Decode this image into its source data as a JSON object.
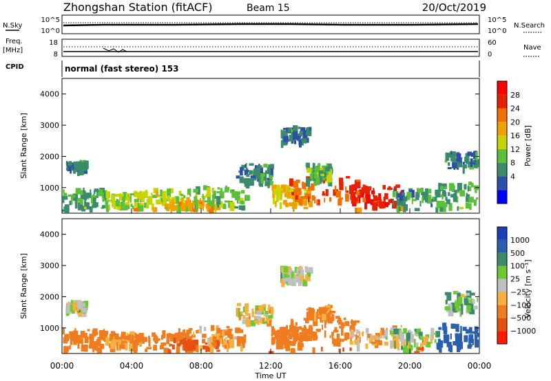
{
  "header": {
    "station": "Zhongshan Station (fitACF)",
    "beam": "Beam 15",
    "date": "20/Oct/2019"
  },
  "top_panel": {
    "left_label": "N.Sky",
    "left_ticks": [
      "10^5",
      "10^0"
    ],
    "right_ticks": [
      "10^5",
      "10^0"
    ],
    "right_label": "N.Search"
  },
  "freq_panel": {
    "left_label": "Freq.",
    "left_unit": "[MHz]",
    "left_ticks": [
      "18",
      "8"
    ],
    "right_ticks": [
      "60",
      "0"
    ],
    "right_label": "Nave"
  },
  "cpid": {
    "label": "CPID",
    "text": "normal (fast stereo) 153"
  },
  "axes": {
    "ylabel": "Slant Range [km]",
    "yticks": [
      "4000",
      "3000",
      "2000",
      "1000"
    ],
    "xticks": [
      "00:00",
      "04:00",
      "08:00",
      "12:00",
      "16:00",
      "20:00",
      "00:00"
    ],
    "xlabel": "Time UT"
  },
  "power_scale": {
    "title": "Power [dB]",
    "ticks": [
      "28",
      "24",
      "20",
      "16",
      "12",
      "8",
      "4"
    ],
    "colors": [
      "#0000ff",
      "#2c4fa8",
      "#3b8a6c",
      "#5bbf3c",
      "#c8d400",
      "#f0a000",
      "#f07000",
      "#e62000",
      "#ff0000"
    ]
  },
  "velocity_scale": {
    "title": "Velocity [m s⁻¹]",
    "ticks": [
      "1000",
      "500",
      "100",
      "25",
      "−25",
      "−100",
      "−500",
      "−1000"
    ],
    "colors": [
      "#1a3fb8",
      "#2a5fae",
      "#3b8a6c",
      "#6ec832",
      "#c0c0c0",
      "#f5b041",
      "#ef7d20",
      "#e65010",
      "#ff1a00"
    ]
  },
  "chart_data": {
    "type": "heatmap",
    "x_range": [
      "00:00",
      "24:00"
    ],
    "y_range_km": [
      180,
      4500
    ],
    "panels": [
      "power",
      "velocity"
    ],
    "regions": [
      {
        "t0": 0.0,
        "t1": 2.5,
        "r0": 300,
        "r1": 1000,
        "power": 10,
        "velocity": -200
      },
      {
        "t0": 0.2,
        "t1": 1.3,
        "r0": 1600,
        "r1": 1900,
        "power": 8,
        "velocity": 20
      },
      {
        "t0": 2.5,
        "t1": 4.5,
        "r0": 400,
        "r1": 900,
        "power": 14,
        "velocity": -150
      },
      {
        "t0": 4.5,
        "t1": 7.5,
        "r0": 300,
        "r1": 1000,
        "power": 15,
        "velocity": -300
      },
      {
        "t0": 6.0,
        "t1": 9.0,
        "r0": 200,
        "r1": 700,
        "power": 20,
        "velocity": -600
      },
      {
        "t0": 7.5,
        "t1": 10.5,
        "r0": 400,
        "r1": 1100,
        "power": 12,
        "velocity": -120
      },
      {
        "t0": 10.0,
        "t1": 12.0,
        "r0": 1200,
        "r1": 1800,
        "power": 9,
        "velocity": -50
      },
      {
        "t0": 12.0,
        "t1": 14.2,
        "r0": 500,
        "r1": 1100,
        "power": 18,
        "velocity": -200
      },
      {
        "t0": 12.5,
        "t1": 14.2,
        "r0": 2500,
        "r1": 3000,
        "power": 8,
        "velocity": 10
      },
      {
        "t0": 13.0,
        "t1": 17.0,
        "r0": 600,
        "r1": 1400,
        "power": 24,
        "velocity": -300
      },
      {
        "t0": 14.0,
        "t1": 15.5,
        "r0": 1300,
        "r1": 1800,
        "power": 12,
        "velocity": -150
      },
      {
        "t0": 16.5,
        "t1": 19.5,
        "r0": 500,
        "r1": 1100,
        "power": 27,
        "velocity": -40
      },
      {
        "t0": 19.0,
        "t1": 21.5,
        "r0": 300,
        "r1": 1000,
        "power": 9,
        "velocity": 30
      },
      {
        "t0": 21.5,
        "t1": 24.0,
        "r0": 400,
        "r1": 1200,
        "power": 11,
        "velocity": 700
      },
      {
        "t0": 22.0,
        "t1": 24.0,
        "r0": 1600,
        "r1": 2200,
        "power": 8,
        "velocity": 60
      },
      {
        "t0": 0.0,
        "t1": 24.0,
        "r0": 200,
        "r1": 400,
        "power": 20,
        "velocity": -500
      }
    ]
  }
}
